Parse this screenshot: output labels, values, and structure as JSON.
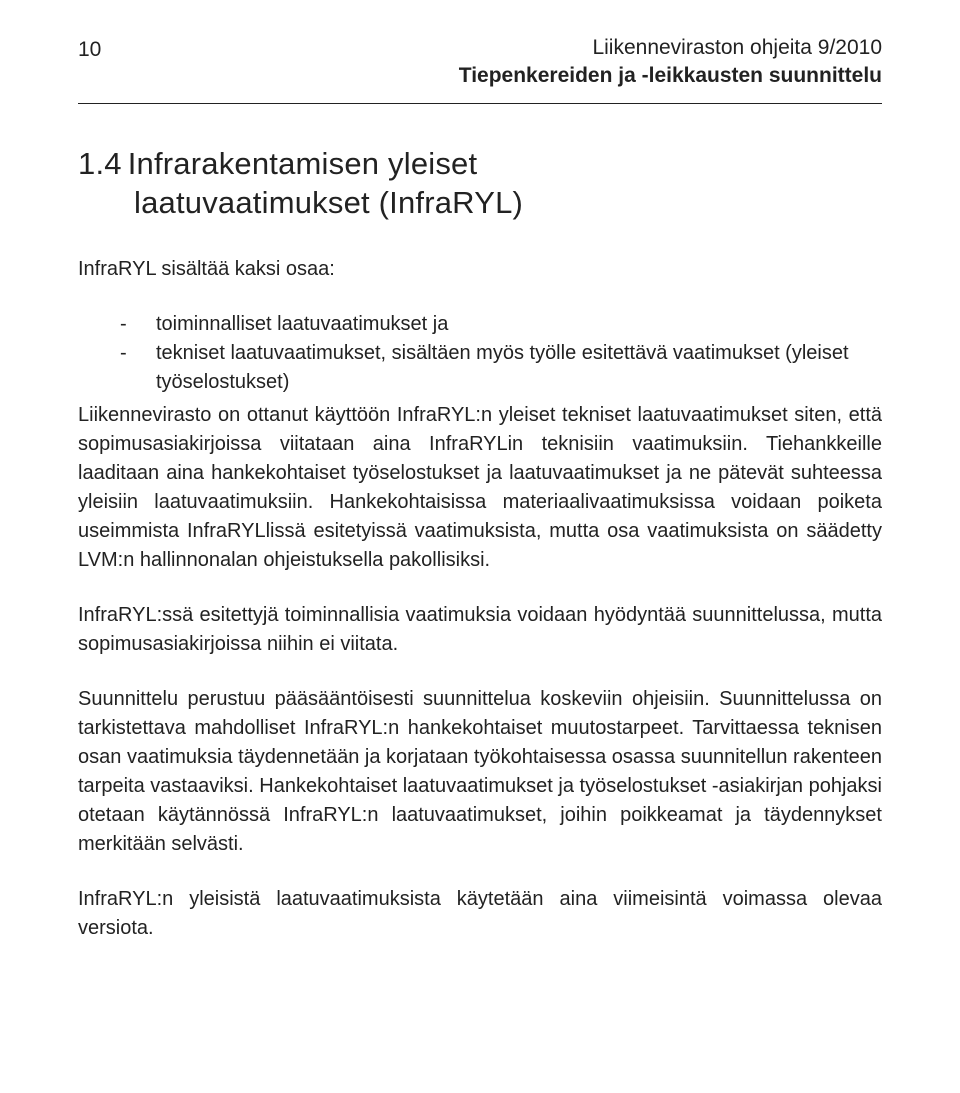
{
  "header": {
    "page_number": "10",
    "line1": "Liikenneviraston ohjeita 9/2010",
    "line2": "Tiepenkereiden ja -leikkausten suunnittelu"
  },
  "section": {
    "number": "1.4",
    "title_line1": "Infrarakentamisen yleiset",
    "title_line2": "laatuvaatimukset (InfraRYL)"
  },
  "intro": "InfraRYL sisältää kaksi osaa:",
  "bullets": [
    "toiminnalliset laatuvaatimukset ja",
    "tekniset laatuvaatimukset, sisältäen myös työlle esitettävä vaatimukset (yleiset työselostukset)"
  ],
  "paragraphs": {
    "p1": "Liikennevirasto on ottanut käyttöön InfraRYL:n yleiset tekniset laatuvaatimukset siten, että sopimusasiakirjoissa viitataan aina InfraRYLin teknisiin vaatimuksiin. Tiehankkeille laaditaan aina hankekohtaiset työselostukset ja laatuvaatimukset ja ne pätevät suhteessa yleisiin laatuvaatimuksiin. Hankekohtaisissa materiaalivaatimuksissa voidaan poiketa useimmista InfraRYLlissä esitetyissä vaatimuksista, mutta osa vaatimuksista on säädetty LVM:n hallinnonalan ohjeistuksella pakollisiksi.",
    "p2": "InfraRYL:ssä esitettyjä toiminnallisia vaatimuksia voidaan hyödyntää suunnittelussa, mutta sopimusasiakirjoissa niihin ei viitata.",
    "p3": "Suunnittelu perustuu pääsääntöisesti suunnittelua koskeviin ohjeisiin. Suunnittelussa on tarkistettava mahdolliset InfraRYL:n hankekohtaiset muutostarpeet. Tarvittaessa teknisen osan vaatimuksia täydennetään ja korjataan työkohtaisessa osassa suunnitellun rakenteen tarpeita vastaaviksi. Hankekohtaiset laatuvaatimukset ja työselostukset -asiakirjan pohjaksi otetaan käytännössä InfraRYL:n laatuvaatimukset, joihin poikkeamat ja täydennykset merkitään selvästi.",
    "p4": "InfraRYL:n yleisistä laatuvaatimuksista käytetään aina viimeisintä voimassa olevaa versiota."
  }
}
